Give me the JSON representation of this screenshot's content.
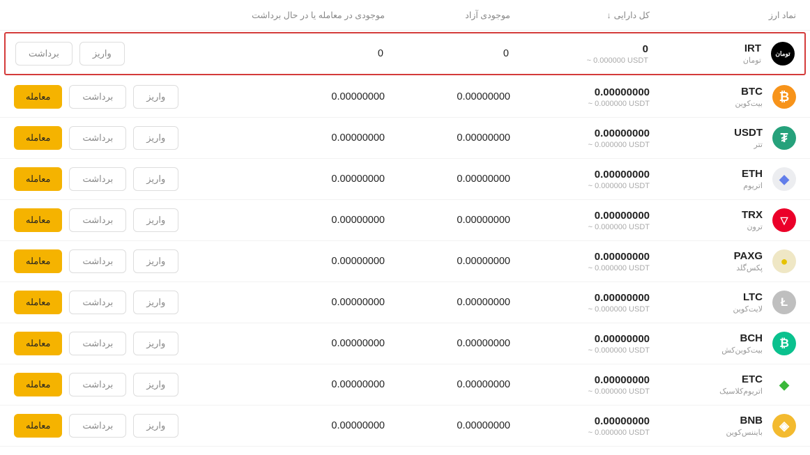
{
  "headers": {
    "symbol": "نماد ارز",
    "total": "کل دارایی",
    "free": "موجودی آزاد",
    "intrade": "موجودی در معامله یا در حال برداشت"
  },
  "buttons": {
    "deposit": "واریز",
    "withdraw": "برداشت",
    "trade": "معامله"
  },
  "colors": {
    "trade_btn_bg": "#f5b300",
    "highlight_border": "#d43b3a"
  },
  "rows": [
    {
      "code": "IRT",
      "name": "تومان",
      "total": "0",
      "usdt": "~ 0.000000 USDT",
      "free": "0",
      "intrade": "0",
      "icon_bg": "#000000",
      "icon_glyph": "تومان",
      "icon_fs": "9px",
      "has_trade": false,
      "highlight": true
    },
    {
      "code": "BTC",
      "name": "بیت‌کوین",
      "total": "0.00000000",
      "usdt": "~ 0.000000 USDT",
      "free": "0.00000000",
      "intrade": "0.00000000",
      "icon_bg": "#f7931a",
      "icon_glyph": "₿",
      "icon_fs": "18px",
      "has_trade": true,
      "highlight": false
    },
    {
      "code": "USDT",
      "name": "تتر",
      "total": "0.00000000",
      "usdt": "~ 0.000000 USDT",
      "free": "0.00000000",
      "intrade": "0.00000000",
      "icon_bg": "#26a17b",
      "icon_glyph": "₮",
      "icon_fs": "18px",
      "has_trade": true,
      "highlight": false
    },
    {
      "code": "ETH",
      "name": "اتریوم",
      "total": "0.00000000",
      "usdt": "~ 0.000000 USDT",
      "free": "0.00000000",
      "intrade": "0.00000000",
      "icon_bg": "#ecedf0",
      "icon_glyph": "◆",
      "icon_fs": "18px",
      "icon_color": "#627eea",
      "has_trade": true,
      "highlight": false
    },
    {
      "code": "TRX",
      "name": "ترون",
      "total": "0.00000000",
      "usdt": "~ 0.000000 USDT",
      "free": "0.00000000",
      "intrade": "0.00000000",
      "icon_bg": "#eb0029",
      "icon_glyph": "▽",
      "icon_fs": "14px",
      "has_trade": true,
      "highlight": false
    },
    {
      "code": "PAXG",
      "name": "پکس‌گلد",
      "total": "0.00000000",
      "usdt": "~ 0.000000 USDT",
      "free": "0.00000000",
      "intrade": "0.00000000",
      "icon_bg": "#efe7c5",
      "icon_glyph": "●",
      "icon_fs": "18px",
      "icon_color": "#e6c200",
      "has_trade": true,
      "highlight": false
    },
    {
      "code": "LTC",
      "name": "لایت‌کوین",
      "total": "0.00000000",
      "usdt": "~ 0.000000 USDT",
      "free": "0.00000000",
      "intrade": "0.00000000",
      "icon_bg": "#bfbfbf",
      "icon_glyph": "Ł",
      "icon_fs": "17px",
      "has_trade": true,
      "highlight": false
    },
    {
      "code": "BCH",
      "name": "بیت‌کوین‌کش",
      "total": "0.00000000",
      "usdt": "~ 0.000000 USDT",
      "free": "0.00000000",
      "intrade": "0.00000000",
      "icon_bg": "#0ac18e",
      "icon_glyph": "₿",
      "icon_fs": "17px",
      "has_trade": true,
      "highlight": false
    },
    {
      "code": "ETC",
      "name": "اتریوم‌کلاسیک",
      "total": "0.00000000",
      "usdt": "~ 0.000000 USDT",
      "free": "0.00000000",
      "intrade": "0.00000000",
      "icon_bg": "#ffffff",
      "icon_glyph": "◆",
      "icon_fs": "18px",
      "icon_color": "#3ab83a",
      "has_trade": true,
      "highlight": false
    },
    {
      "code": "BNB",
      "name": "بایننس‌کوین",
      "total": "0.00000000",
      "usdt": "~ 0.000000 USDT",
      "free": "0.00000000",
      "intrade": "0.00000000",
      "icon_bg": "#f3ba2f",
      "icon_glyph": "◈",
      "icon_fs": "18px",
      "has_trade": true,
      "highlight": false
    }
  ]
}
